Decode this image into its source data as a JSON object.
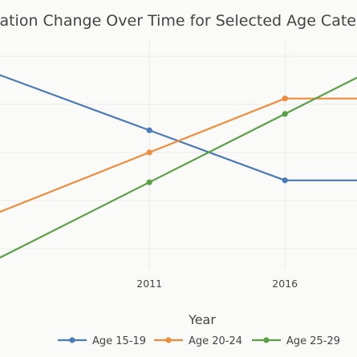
{
  "chart_data": {
    "type": "line",
    "title": "Population Change Over Time for Selected Age Categories",
    "xlabel": "Year",
    "ylabel": "",
    "x": [
      2011,
      2016
    ],
    "xticks": [
      "2011",
      "2016"
    ],
    "xlim": [
      2004.9,
      2019.1
    ],
    "ylim": [
      0,
      1
    ],
    "grid": true,
    "legend_placement": "bottom",
    "series": [
      {
        "name": "Age 15-19",
        "color": "#4a7ab8",
        "values": [
          0.615,
          0.355
        ]
      },
      {
        "name": "Age 20-24",
        "color": "#ef8c3c",
        "values": [
          0.5,
          0.78
        ]
      },
      {
        "name": "Age 25-29",
        "color": "#5aa146",
        "values": [
          0.345,
          0.7
        ]
      }
    ]
  }
}
